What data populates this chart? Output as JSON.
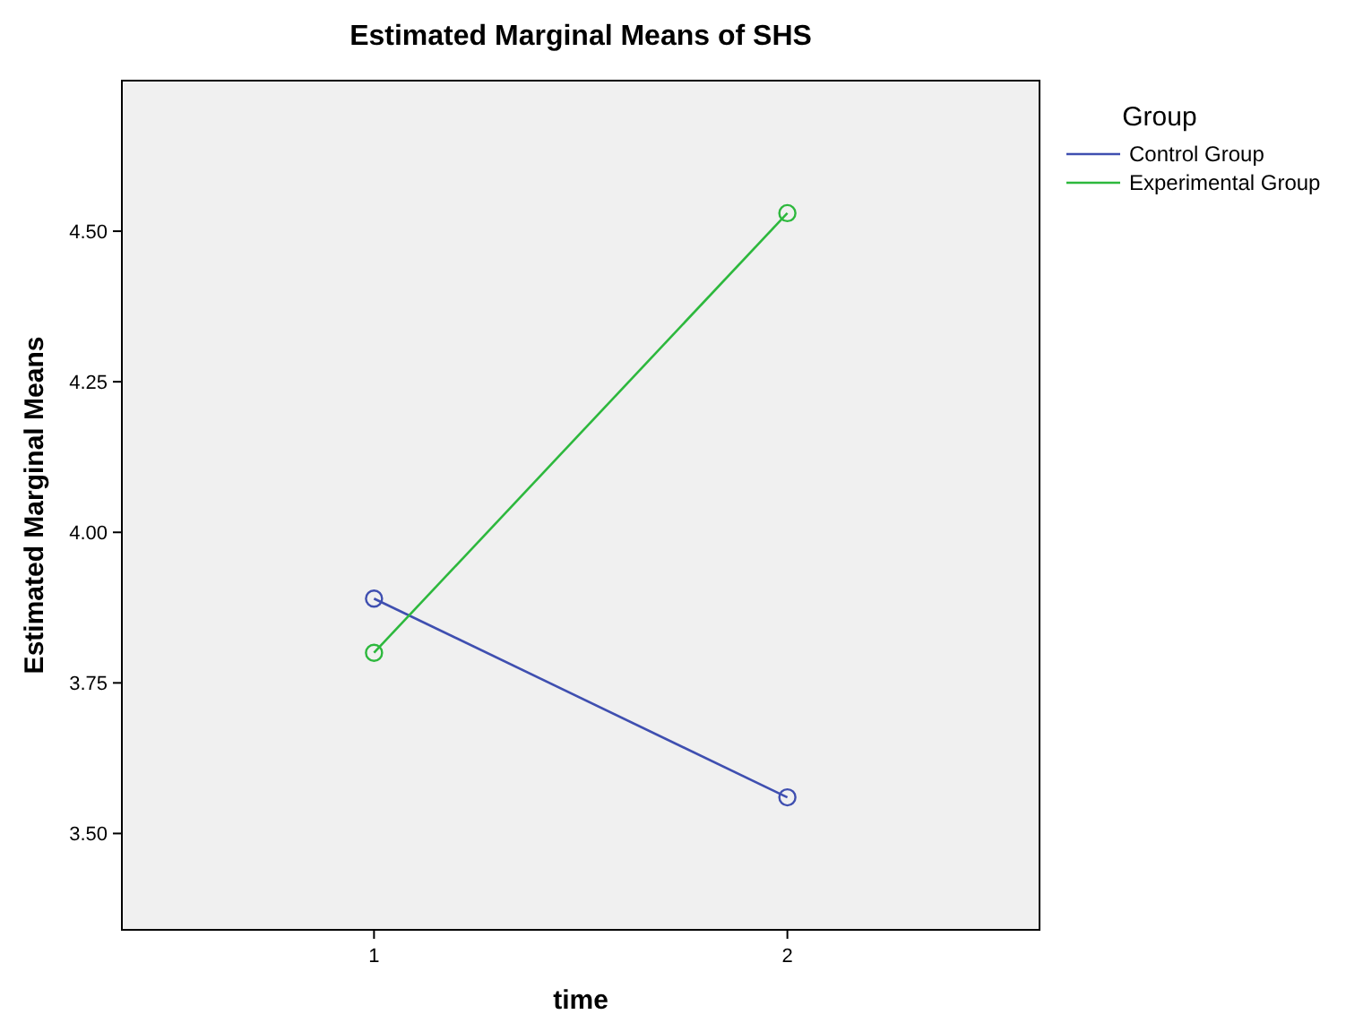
{
  "chart_data": {
    "type": "line",
    "title": "Estimated Marginal Means of SHS",
    "xlabel": "time",
    "ylabel": "Estimated Marginal Means",
    "legend_title": "Group",
    "categories": [
      "1",
      "2"
    ],
    "series": [
      {
        "name": "Control Group",
        "color": "#3f4fb0",
        "values": [
          3.89,
          3.56
        ]
      },
      {
        "name": "Experimental Group",
        "color": "#2db83d",
        "values": [
          3.8,
          4.53
        ]
      }
    ],
    "ylim": [
      3.34,
      4.75
    ],
    "yticks": [
      {
        "value": 3.5,
        "label": "3.50"
      },
      {
        "value": 3.75,
        "label": "3.75"
      },
      {
        "value": 4,
        "label": "4.00"
      },
      {
        "value": 4.25,
        "label": "4.25"
      },
      {
        "value": 4.5,
        "label": "4.50"
      }
    ],
    "grid": false,
    "legend": "top right",
    "marker": "circle",
    "line_style": "solid"
  }
}
